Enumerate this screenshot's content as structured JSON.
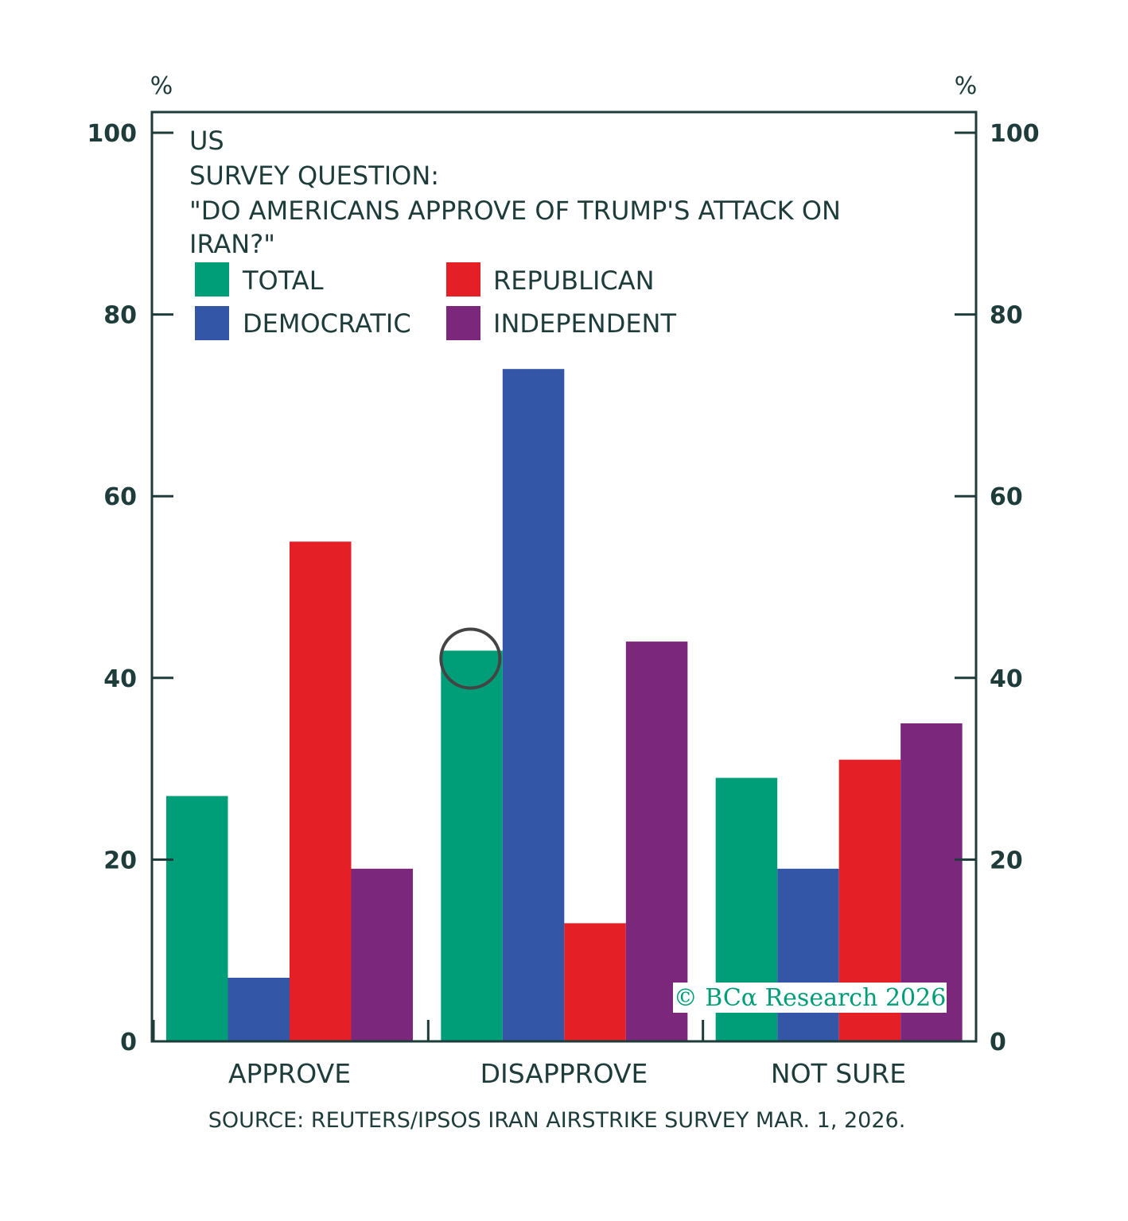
{
  "chart_data": {
    "type": "bar",
    "title_lines": [
      "US",
      "SURVEY QUESTION:",
      "\"DO AMERICANS APPROVE OF TRUMP'S ATTACK ON",
      "IRAN?\""
    ],
    "categories": [
      "APPROVE",
      "DISAPPROVE",
      "NOT SURE"
    ],
    "series": [
      {
        "name": "TOTAL",
        "color": "#009e78",
        "values": [
          27,
          43,
          29
        ]
      },
      {
        "name": "DEMOCRATIC",
        "color": "#3456a6",
        "values": [
          7,
          74,
          19
        ]
      },
      {
        "name": "REPUBLICAN",
        "color": "#e41f26",
        "values": [
          55,
          13,
          31
        ]
      },
      {
        "name": "INDEPENDENT",
        "color": "#7b287c",
        "values": [
          19,
          44,
          35
        ]
      }
    ],
    "ylim": [
      0,
      100
    ],
    "yticks": [
      "0",
      "20",
      "40",
      "60",
      "80",
      "100"
    ],
    "y_unit_left": "%",
    "y_unit_right": "%",
    "source": "SOURCE: REUTERS/IPSOS IRAN AIRSTRIKE SURVEY MAR. 1, 2026.",
    "watermark": "© BCα Research 2026",
    "highlight": {
      "category": "DISAPPROVE",
      "series": "TOTAL"
    },
    "frame_color": "#1d3c3a",
    "highlight_color": "#444444"
  }
}
